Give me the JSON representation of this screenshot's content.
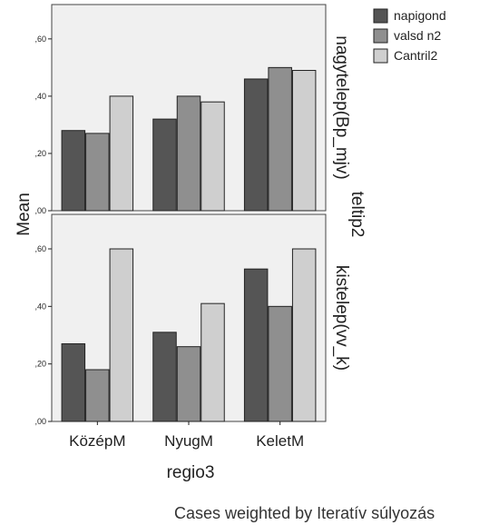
{
  "chart_data": {
    "type": "bar",
    "ylabel": "Mean",
    "xlabel": "regio3",
    "row_variable": "teltip2",
    "categories": [
      "KözépM",
      "NyugM",
      "KeletM"
    ],
    "ylim": [
      0,
      0.72
    ],
    "yticks": [
      ",00",
      ",20",
      ",40",
      ",60"
    ],
    "grid": false,
    "legend_position": "top-right",
    "legend": [
      "napigond",
      "valsd n2",
      "Cantril2"
    ],
    "colors": [
      "#555555",
      "#8f8f8f",
      "#cfcfcf"
    ],
    "panels": [
      {
        "label": "nagytelep(Bp_mjv)",
        "series": [
          {
            "name": "napigond",
            "values": [
              0.28,
              0.32,
              0.46
            ]
          },
          {
            "name": "valsd n2",
            "values": [
              0.27,
              0.4,
              0.5
            ]
          },
          {
            "name": "Cantril2",
            "values": [
              0.4,
              0.38,
              0.49
            ]
          }
        ]
      },
      {
        "label": "kistelep(vv_k)",
        "series": [
          {
            "name": "napigond",
            "values": [
              0.27,
              0.31,
              0.53
            ]
          },
          {
            "name": "valsd n2",
            "values": [
              0.18,
              0.26,
              0.4
            ]
          },
          {
            "name": "Cantril2",
            "values": [
              0.6,
              0.41,
              0.6
            ]
          }
        ]
      }
    ],
    "footnote": "Cases weighted by Iteratív súlyozás"
  }
}
